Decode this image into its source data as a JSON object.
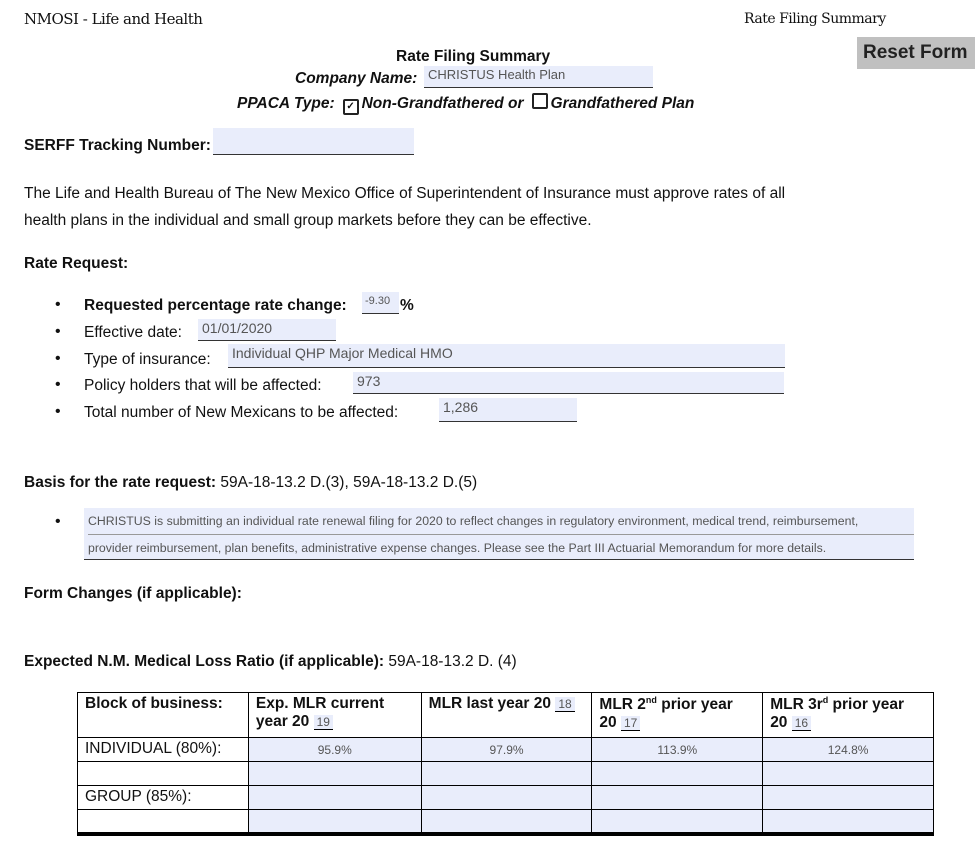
{
  "header": {
    "left": "NMOSI - Life and Health",
    "right": "Rate Filing Summary"
  },
  "reset_label": "Reset Form",
  "title": "Rate Filing Summary",
  "company": {
    "label": "Company Name:",
    "value": "CHRISTUS Health Plan"
  },
  "ppaca": {
    "label": "PPACA Type:",
    "option1": "Non-Grandfathered or",
    "option1_checked": true,
    "option2": "Grandfathered Plan",
    "option2_checked": false
  },
  "serff": {
    "label": "SERFF Tracking Number:",
    "value": ""
  },
  "intro": [
    "The Life and Health Bureau of The New Mexico Office of Superintendent of Insurance must approve rates of all",
    "health plans in the individual and small group markets before they can be effective."
  ],
  "rate_request": {
    "heading": "Rate Request:",
    "items": [
      {
        "label": "Requested  percentage rate change:",
        "value": "-9.30",
        "suffix": "%"
      },
      {
        "label": "Effective date:",
        "value": "01/01/2020"
      },
      {
        "label": "Type of insurance:",
        "value": "Individual QHP Major Medical HMO"
      },
      {
        "label": "Policy holders that will be affected:",
        "value": "973"
      },
      {
        "label": "Total number of New Mexicans to be affected:",
        "value": "1,286"
      }
    ]
  },
  "basis": {
    "label": "Basis for the rate request:",
    "refs": "59A-18-13.2 D.(3),  59A-18-13.2 D.(5)",
    "text": [
      "CHRISTUS is submitting an individual rate renewal filing for 2020 to reflect changes in regulatory environment, medical trend, reimbursement,",
      "provider reimbursement, plan benefits, administrative expense changes. Please see the Part III Actuarial Memorandum for more details."
    ]
  },
  "form_changes": {
    "label": "Form Changes (if applicable):"
  },
  "mlr": {
    "label": "Expected N.M. Medical Loss Ratio (if applicable):",
    "ref": "59A-18-13.2 D. (4)",
    "headers": {
      "block": "Block of  business:",
      "c1a": "Exp. MLR current",
      "c1b": "year 20",
      "c1y": "19",
      "c2": "MLR last year 20",
      "c2y": "18",
      "c3a": "MLR 2",
      "c3sup": "nd",
      "c3b": " prior year",
      "c3c": "20",
      "c3y": "17",
      "c4a": "MLR 3r",
      "c4sup": "d",
      "c4b": " prior year",
      "c4c": "20",
      "c4y": "16"
    },
    "rows": [
      {
        "label": "INDIVIDUAL  (80%):",
        "values": [
          "95.9%",
          "97.9%",
          "113.9%",
          "124.8%"
        ]
      },
      {
        "label": "",
        "values": [
          "",
          "",
          "",
          ""
        ]
      },
      {
        "label": "GROUP (85%):",
        "values": [
          "",
          "",
          "",
          ""
        ]
      },
      {
        "label": "",
        "values": [
          "",
          "",
          "",
          ""
        ]
      }
    ]
  }
}
